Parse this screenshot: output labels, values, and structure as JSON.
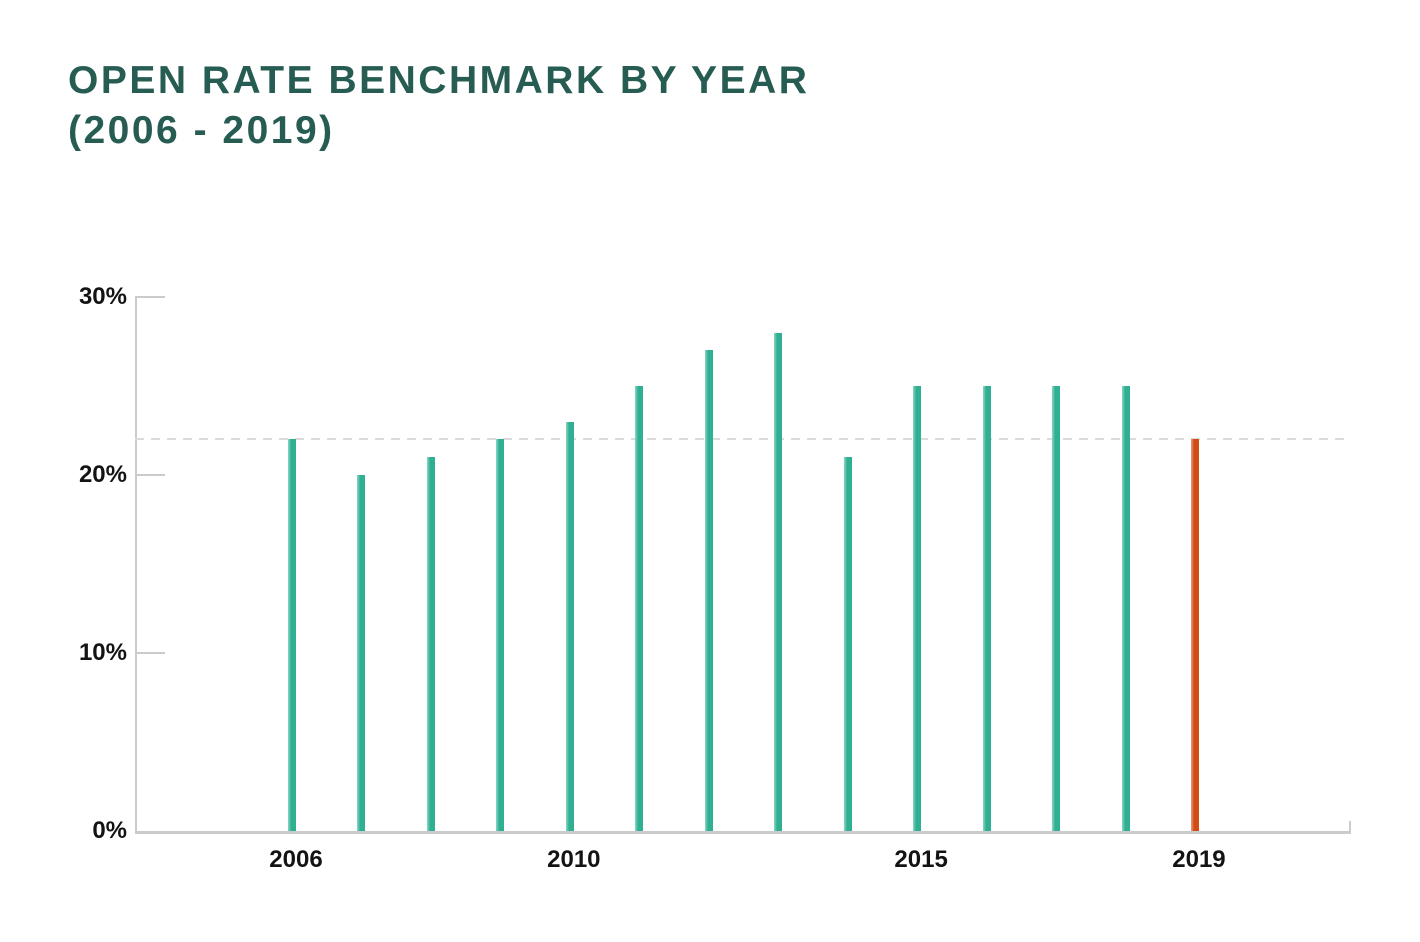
{
  "title": {
    "line1": "OPEN RATE BENCHMARK BY YEAR",
    "line2": "(2006 - 2019)",
    "color": "#265C52"
  },
  "chart_data": {
    "type": "bar",
    "title": "OPEN RATE BENCHMARK BY YEAR (2006 - 2019)",
    "categories": [
      2006,
      2007,
      2008,
      2009,
      2010,
      2011,
      2012,
      2013,
      2014,
      2015,
      2016,
      2017,
      2018,
      2019
    ],
    "values": [
      22,
      20,
      21,
      22,
      23,
      25,
      27,
      28,
      21,
      25,
      25,
      25,
      25,
      22
    ],
    "unit": "%",
    "ylim": [
      0,
      30
    ],
    "y_ticks": [
      {
        "value": 0,
        "label": "0%"
      },
      {
        "value": 10,
        "label": "10%"
      },
      {
        "value": 20,
        "label": "20%"
      },
      {
        "value": 30,
        "label": "30%"
      }
    ],
    "x_ticks": [
      {
        "category": 2006,
        "label": "2006"
      },
      {
        "category": 2010,
        "label": "2010"
      },
      {
        "category": 2015,
        "label": "2015"
      },
      {
        "category": 2019,
        "label": "2019"
      }
    ],
    "reference_line": {
      "value": 22,
      "style": "dashed"
    },
    "bar_color": "#2FB093",
    "highlight_color": "#D34B15",
    "highlight_category": 2019,
    "axis_color": "#CBCBCB",
    "reference_line_color": "#DBDBDB",
    "label_color": "#131313",
    "grid": "off",
    "legend": "none"
  }
}
